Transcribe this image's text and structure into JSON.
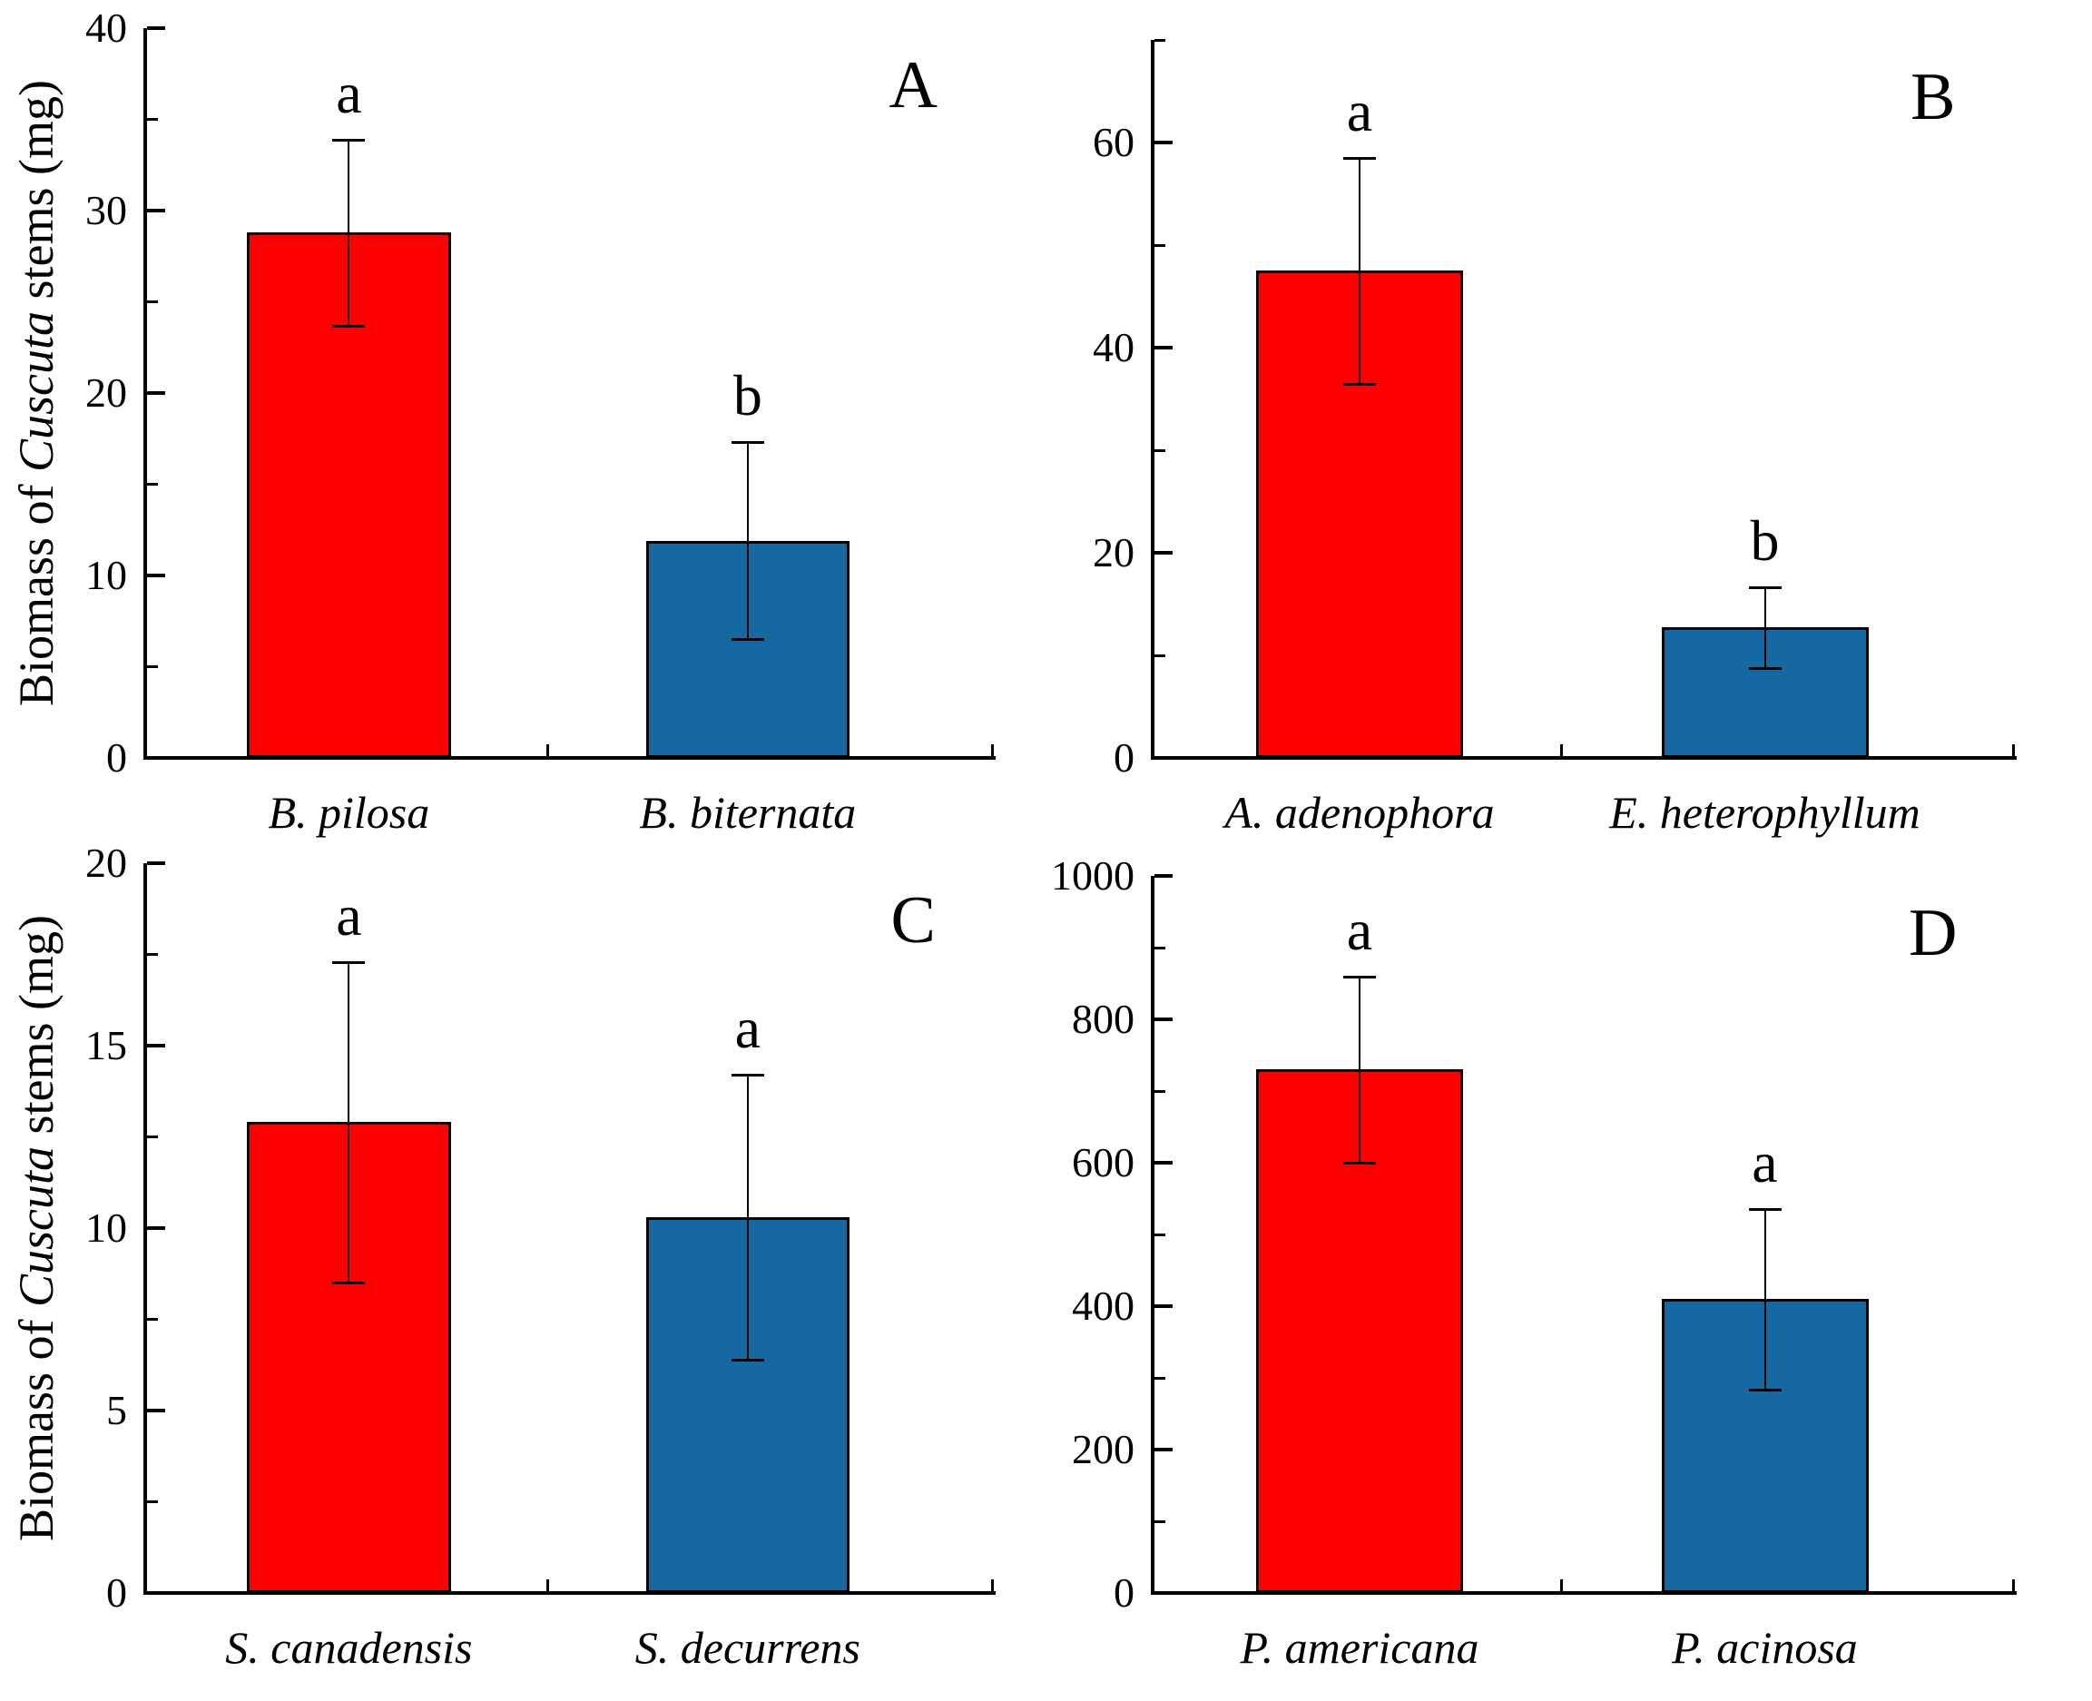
{
  "figure": {
    "background": "#ffffff",
    "y_axis_label": {
      "prefix": "Biomass of ",
      "italic": "Cuscuta",
      "suffix": " stems (mg)"
    },
    "colors": {
      "red_bar": "#fe0000",
      "blue_bar": "#1568a0",
      "axis": "#000000",
      "error_bar": "#000000"
    }
  },
  "chart_data": [
    {
      "type": "bar",
      "panel_letter": "A",
      "categories": [
        "B. pilosa",
        "B. biternata"
      ],
      "values": [
        28.8,
        11.9
      ],
      "error_bars": [
        5.1,
        5.4
      ],
      "sig_letters": [
        "a",
        "b"
      ],
      "bar_colors": [
        "#fe0000",
        "#1568a0"
      ],
      "ylim": [
        0,
        40
      ],
      "yticks": [
        0,
        10,
        20,
        30,
        40
      ],
      "minor_tick_interval": 5,
      "grid": "off",
      "legend": "none"
    },
    {
      "type": "bar",
      "panel_letter": "B",
      "categories": [
        "A. adenophora",
        "E. heterophyllum"
      ],
      "values": [
        47.5,
        12.7
      ],
      "error_bars": [
        11.0,
        3.9
      ],
      "sig_letters": [
        "a",
        "b"
      ],
      "bar_colors": [
        "#fe0000",
        "#1568a0"
      ],
      "ylim": [
        0,
        70
      ],
      "yticks": [
        0,
        20,
        40,
        60
      ],
      "minor_tick_interval": 10,
      "grid": "off",
      "legend": "none"
    },
    {
      "type": "bar",
      "panel_letter": "C",
      "categories": [
        "S. canadensis",
        "S. decurrens"
      ],
      "values": [
        12.9,
        10.3
      ],
      "error_bars": [
        4.4,
        3.9
      ],
      "sig_letters": [
        "a",
        "a"
      ],
      "bar_colors": [
        "#fe0000",
        "#1568a0"
      ],
      "ylim": [
        0,
        20
      ],
      "yticks": [
        0,
        5,
        10,
        15,
        20
      ],
      "minor_tick_interval": 2.5,
      "grid": "off",
      "legend": "none"
    },
    {
      "type": "bar",
      "panel_letter": "D",
      "categories": [
        "P. americana",
        "P. acinosa"
      ],
      "values": [
        730,
        410
      ],
      "error_bars": [
        130,
        126
      ],
      "sig_letters": [
        "a",
        "a"
      ],
      "bar_colors": [
        "#fe0000",
        "#1568a0"
      ],
      "ylim": [
        0,
        1000
      ],
      "yticks": [
        0,
        200,
        400,
        600,
        800,
        1000
      ],
      "minor_tick_interval": 100,
      "grid": "off",
      "legend": "none"
    }
  ]
}
